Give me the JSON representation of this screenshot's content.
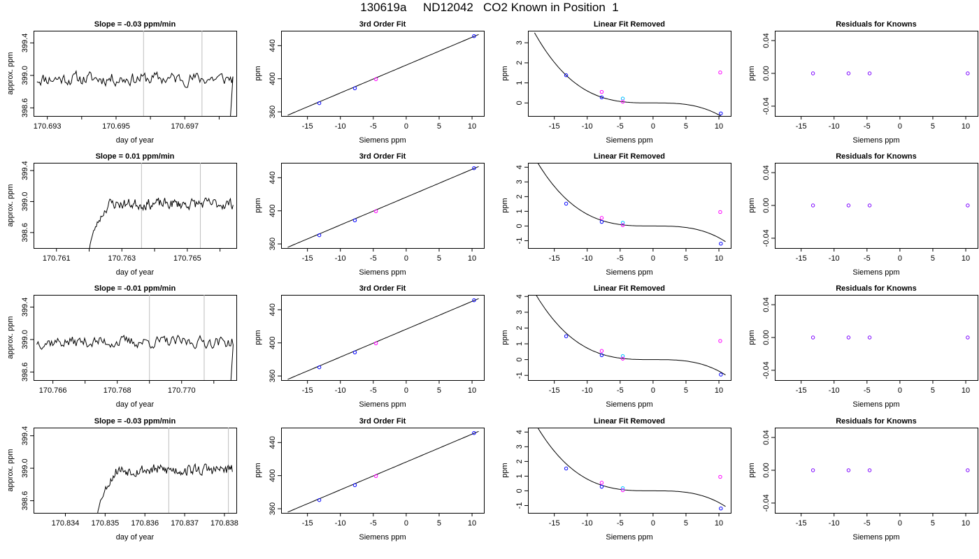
{
  "title": "130619a     ND12042   CO2 Known in Position  1",
  "colors": {
    "line": "#000000",
    "marker_points": "#0000ff",
    "marker_known": "#ff00ff",
    "marker_cyan": "#00bfff",
    "marker_residual": "#7b00ff",
    "vline": "#bebebe"
  },
  "chart_data": [
    {
      "type": "line",
      "row": 1,
      "col": 1,
      "title": "Slope =  -0.03  ppm/min",
      "xlabel": "day of year",
      "ylabel": "approx. ppm",
      "xlim": [
        170.6926,
        170.6985
      ],
      "ylim": [
        398.5,
        399.55
      ],
      "xticks": [
        170.693,
        170.694,
        170.695,
        170.696,
        170.697,
        170.698
      ],
      "xticklabels": [
        "170.693",
        "",
        "170.695",
        "",
        "170.697",
        ""
      ],
      "yticks": [
        398.6,
        399.0,
        399.4
      ],
      "yticklabels": [
        "398.6",
        "399.0",
        "399.4"
      ],
      "vlines": [
        170.6958,
        170.6975
      ],
      "trace": {
        "start": 170.6927,
        "end": 170.6984,
        "level": 398.96,
        "noise": 0.08,
        "ramp_end": null,
        "drop_at": 170.6983,
        "seed": 11
      }
    },
    {
      "type": "scatter",
      "row": 1,
      "col": 2,
      "title": "3rd Order Fit",
      "xlabel": "Siemens ppm",
      "ylabel": "ppm",
      "xlim": [
        -19,
        11.8
      ],
      "ylim": [
        355,
        458
      ],
      "xticks": [
        -15,
        -10,
        -5,
        0,
        5,
        10
      ],
      "xticklabels": [
        "-15",
        "-10",
        "-5",
        "0",
        "5",
        "10"
      ],
      "yticks": [
        360,
        400,
        440
      ],
      "yticklabels": [
        "360",
        "400",
        "440"
      ],
      "curve": {
        "fn": "fit3",
        "x0": -18,
        "x1": 11,
        "shift": 0
      },
      "points": [
        {
          "x": -13.2,
          "y": 370.5,
          "color": "blue"
        },
        {
          "x": -7.8,
          "y": 388.5,
          "color": "blue"
        },
        {
          "x": -4.6,
          "y": 399.5,
          "color": "magenta"
        },
        {
          "x": 10.3,
          "y": 451.5,
          "color": "blue"
        }
      ]
    },
    {
      "type": "scatter",
      "row": 1,
      "col": 3,
      "title": "Linear Fit Removed",
      "xlabel": "Siemens ppm",
      "ylabel": "ppm",
      "xlim": [
        -19,
        11.8
      ],
      "ylim": [
        -0.65,
        3.6
      ],
      "xticks": [
        -15,
        -10,
        -5,
        0,
        5,
        10
      ],
      "xticklabels": [
        "-15",
        "-10",
        "-5",
        "0",
        "5",
        "10"
      ],
      "yticks": [
        0,
        1,
        2,
        3
      ],
      "yticklabels": [
        "0",
        "1",
        "2",
        "3"
      ],
      "curve": {
        "fn": "cubic",
        "x0": -18,
        "x1": 11,
        "coef": 0.0006,
        "offset": 0.0
      },
      "points": [
        {
          "x": -13.2,
          "y": 1.38,
          "color": "blue"
        },
        {
          "x": -7.8,
          "y": 0.28,
          "color": "blue"
        },
        {
          "x": -7.8,
          "y": 0.55,
          "color": "magenta"
        },
        {
          "x": -4.6,
          "y": 0.22,
          "color": "cyan"
        },
        {
          "x": -4.6,
          "y": 0.06,
          "color": "magenta"
        },
        {
          "x": 10.2,
          "y": 1.52,
          "color": "magenta"
        },
        {
          "x": 10.3,
          "y": -0.52,
          "color": "blue"
        }
      ]
    },
    {
      "type": "scatter",
      "row": 1,
      "col": 4,
      "title": "Residuals for Knowns",
      "xlabel": "Siemens ppm",
      "ylabel": "ppm",
      "xlim": [
        -19,
        11.8
      ],
      "ylim": [
        -0.052,
        0.052
      ],
      "xticks": [
        -15,
        -10,
        -5,
        0,
        5,
        10
      ],
      "xticklabels": [
        "-15",
        "-10",
        "-5",
        "0",
        "5",
        "10"
      ],
      "yticks": [
        -0.04,
        0.0,
        0.04
      ],
      "yticklabels": [
        "-0.04",
        "0.00",
        "0.04"
      ],
      "points": [
        {
          "x": -13.2,
          "y": 0,
          "color": "purple"
        },
        {
          "x": -7.8,
          "y": 0,
          "color": "purple"
        },
        {
          "x": -4.6,
          "y": 0,
          "color": "purple"
        },
        {
          "x": 10.3,
          "y": 0,
          "color": "purple"
        }
      ]
    },
    {
      "type": "line",
      "row": 2,
      "col": 1,
      "title": "Slope =  0.01  ppm/min",
      "xlabel": "day of year",
      "ylabel": "approx. ppm",
      "xlim": [
        170.7603,
        170.7665
      ],
      "ylim": [
        398.4,
        399.5
      ],
      "xticks": [
        170.761,
        170.762,
        170.763,
        170.764,
        170.765,
        170.766
      ],
      "xticklabels": [
        "170.761",
        "",
        "170.763",
        "",
        "170.765",
        ""
      ],
      "yticks": [
        398.6,
        399.0,
        399.4
      ],
      "yticklabels": [
        "398.6",
        "399.0",
        "399.4"
      ],
      "vlines": [
        170.7636,
        170.7654
      ],
      "trace": {
        "start": 170.762,
        "end": 170.7664,
        "level": 398.97,
        "noise": 0.07,
        "ramp_end": 170.7626,
        "drop_at": null,
        "seed": 23
      }
    },
    {
      "type": "scatter",
      "row": 2,
      "col": 2,
      "title": "3rd Order Fit",
      "xlabel": "Siemens ppm",
      "ylabel": "ppm",
      "xlim": [
        -19,
        11.8
      ],
      "ylim": [
        355,
        458
      ],
      "xticks": [
        -15,
        -10,
        -5,
        0,
        5,
        10
      ],
      "xticklabels": [
        "-15",
        "-10",
        "-5",
        "0",
        "5",
        "10"
      ],
      "yticks": [
        360,
        400,
        440
      ],
      "yticklabels": [
        "360",
        "400",
        "440"
      ],
      "curve": {
        "fn": "fit3",
        "x0": -18,
        "x1": 11,
        "shift": 0
      },
      "points": [
        {
          "x": -13.2,
          "y": 370.5,
          "color": "blue"
        },
        {
          "x": -7.8,
          "y": 388.5,
          "color": "blue"
        },
        {
          "x": -4.6,
          "y": 399.5,
          "color": "magenta"
        },
        {
          "x": 10.3,
          "y": 451.5,
          "color": "blue"
        }
      ]
    },
    {
      "type": "scatter",
      "row": 2,
      "col": 3,
      "title": "Linear Fit Removed",
      "xlabel": "Siemens ppm",
      "ylabel": "ppm",
      "xlim": [
        -19,
        11.8
      ],
      "ylim": [
        -1.5,
        4.3
      ],
      "xticks": [
        -15,
        -10,
        -5,
        0,
        5,
        10
      ],
      "xticklabels": [
        "-15",
        "-10",
        "-5",
        "0",
        "5",
        "10"
      ],
      "yticks": [
        -1,
        0,
        1,
        2,
        3,
        4
      ],
      "yticklabels": [
        "-1",
        "0",
        "1",
        "2",
        "3",
        "4"
      ],
      "curve": {
        "fn": "cubic",
        "x0": -18,
        "x1": 11,
        "coef": 0.0008,
        "offset": 0.0
      },
      "points": [
        {
          "x": -13.2,
          "y": 1.52,
          "color": "blue"
        },
        {
          "x": -7.8,
          "y": 0.28,
          "color": "blue"
        },
        {
          "x": -7.8,
          "y": 0.55,
          "color": "magenta"
        },
        {
          "x": -4.6,
          "y": 0.22,
          "color": "cyan"
        },
        {
          "x": -4.6,
          "y": 0.06,
          "color": "magenta"
        },
        {
          "x": 10.2,
          "y": 0.95,
          "color": "magenta"
        },
        {
          "x": 10.3,
          "y": -1.2,
          "color": "blue"
        }
      ]
    },
    {
      "type": "scatter",
      "row": 2,
      "col": 4,
      "title": "Residuals for Knowns",
      "xlabel": "Siemens ppm",
      "ylabel": "ppm",
      "xlim": [
        -19,
        11.8
      ],
      "ylim": [
        -0.052,
        0.052
      ],
      "xticks": [
        -15,
        -10,
        -5,
        0,
        5,
        10
      ],
      "xticklabels": [
        "-15",
        "-10",
        "-5",
        "0",
        "5",
        "10"
      ],
      "yticks": [
        -0.04,
        0.0,
        0.04
      ],
      "yticklabels": [
        "-0.04",
        "0.00",
        "0.04"
      ],
      "points": [
        {
          "x": -13.2,
          "y": 0,
          "color": "purple"
        },
        {
          "x": -7.8,
          "y": 0,
          "color": "purple"
        },
        {
          "x": -4.6,
          "y": 0,
          "color": "purple"
        },
        {
          "x": 10.3,
          "y": 0,
          "color": "purple"
        }
      ]
    },
    {
      "type": "line",
      "row": 3,
      "col": 1,
      "title": "Slope =  -0.01  ppm/min",
      "xlabel": "day of year",
      "ylabel": "approx. ppm",
      "xlim": [
        170.7654,
        170.7717
      ],
      "ylim": [
        398.5,
        399.55
      ],
      "xticks": [
        170.766,
        170.767,
        170.768,
        170.769,
        170.77,
        170.771
      ],
      "xticklabels": [
        "170.766",
        "",
        "170.768",
        "",
        "170.770",
        ""
      ],
      "yticks": [
        398.6,
        399.0,
        399.4
      ],
      "yticklabels": [
        "398.6",
        "399.0",
        "399.4"
      ],
      "vlines": [
        170.769,
        170.7707
      ],
      "trace": {
        "start": 170.7655,
        "end": 170.7716,
        "level": 398.97,
        "noise": 0.07,
        "ramp_end": null,
        "drop_at": 170.7715,
        "seed": 37
      }
    },
    {
      "type": "scatter",
      "row": 3,
      "col": 2,
      "title": "3rd Order Fit",
      "xlabel": "Siemens ppm",
      "ylabel": "ppm",
      "xlim": [
        -19,
        11.8
      ],
      "ylim": [
        355,
        458
      ],
      "xticks": [
        -15,
        -10,
        -5,
        0,
        5,
        10
      ],
      "xticklabels": [
        "-15",
        "-10",
        "-5",
        "0",
        "5",
        "10"
      ],
      "yticks": [
        360,
        400,
        440
      ],
      "yticklabels": [
        "360",
        "400",
        "440"
      ],
      "curve": {
        "fn": "fit3",
        "x0": -18,
        "x1": 11,
        "shift": 0
      },
      "points": [
        {
          "x": -13.2,
          "y": 370.5,
          "color": "blue"
        },
        {
          "x": -7.8,
          "y": 388.5,
          "color": "blue"
        },
        {
          "x": -4.6,
          "y": 399.5,
          "color": "magenta"
        },
        {
          "x": 10.3,
          "y": 451.5,
          "color": "blue"
        }
      ]
    },
    {
      "type": "scatter",
      "row": 3,
      "col": 3,
      "title": "Linear Fit Removed",
      "xlabel": "Siemens ppm",
      "ylabel": "ppm",
      "xlim": [
        -19,
        11.8
      ],
      "ylim": [
        -1.3,
        4.1
      ],
      "xticks": [
        -15,
        -10,
        -5,
        0,
        5,
        10
      ],
      "xticklabels": [
        "-15",
        "-10",
        "-5",
        "0",
        "5",
        "10"
      ],
      "yticks": [
        -1,
        0,
        1,
        2,
        3,
        4
      ],
      "yticklabels": [
        "-1",
        "0",
        "1",
        "2",
        "3",
        "4"
      ],
      "curve": {
        "fn": "cubic",
        "x0": -18,
        "x1": 11,
        "coef": 0.00073,
        "offset": 0.0
      },
      "points": [
        {
          "x": -13.2,
          "y": 1.48,
          "color": "blue"
        },
        {
          "x": -7.8,
          "y": 0.28,
          "color": "blue"
        },
        {
          "x": -7.8,
          "y": 0.55,
          "color": "magenta"
        },
        {
          "x": -4.6,
          "y": 0.22,
          "color": "cyan"
        },
        {
          "x": -4.6,
          "y": 0.06,
          "color": "magenta"
        },
        {
          "x": 10.2,
          "y": 1.18,
          "color": "magenta"
        },
        {
          "x": 10.3,
          "y": -0.95,
          "color": "blue"
        }
      ]
    },
    {
      "type": "scatter",
      "row": 3,
      "col": 4,
      "title": "Residuals for Knowns",
      "xlabel": "Siemens ppm",
      "ylabel": "ppm",
      "xlim": [
        -19,
        11.8
      ],
      "ylim": [
        -0.052,
        0.052
      ],
      "xticks": [
        -15,
        -10,
        -5,
        0,
        5,
        10
      ],
      "xticklabels": [
        "-15",
        "-10",
        "-5",
        "0",
        "5",
        "10"
      ],
      "yticks": [
        -0.04,
        0.0,
        0.04
      ],
      "yticklabels": [
        "-0.04",
        "0.00",
        "0.04"
      ],
      "points": [
        {
          "x": -13.2,
          "y": 0,
          "color": "purple"
        },
        {
          "x": -7.8,
          "y": 0,
          "color": "purple"
        },
        {
          "x": -4.6,
          "y": 0,
          "color": "purple"
        },
        {
          "x": 10.3,
          "y": 0,
          "color": "purple"
        }
      ]
    },
    {
      "type": "line",
      "row": 4,
      "col": 1,
      "title": "Slope =  -0.03  ppm/min",
      "xlabel": "day of year",
      "ylabel": "approx. ppm",
      "xlim": [
        170.8332,
        170.8383
      ],
      "ylim": [
        398.45,
        399.5
      ],
      "xticks": [
        170.834,
        170.835,
        170.836,
        170.837,
        170.838
      ],
      "xticklabels": [
        "170.834",
        "170.835",
        "170.836",
        "170.837",
        "170.838"
      ],
      "yticks": [
        398.6,
        399.0,
        399.4
      ],
      "yticklabels": [
        "398.6",
        "399.0",
        "399.4"
      ],
      "vlines": [
        170.8366,
        170.8381
      ],
      "trace": {
        "start": 170.8348,
        "end": 170.8382,
        "level": 398.98,
        "noise": 0.07,
        "ramp_end": 170.8353,
        "drop_at": null,
        "seed": 53
      }
    },
    {
      "type": "scatter",
      "row": 4,
      "col": 2,
      "title": "3rd Order Fit",
      "xlabel": "Siemens ppm",
      "ylabel": "ppm",
      "xlim": [
        -19,
        11.8
      ],
      "ylim": [
        355,
        458
      ],
      "xticks": [
        -15,
        -10,
        -5,
        0,
        5,
        10
      ],
      "xticklabels": [
        "-15",
        "-10",
        "-5",
        "0",
        "5",
        "10"
      ],
      "yticks": [
        360,
        400,
        440
      ],
      "yticklabels": [
        "360",
        "400",
        "440"
      ],
      "curve": {
        "fn": "fit3",
        "x0": -18,
        "x1": 11,
        "shift": 0
      },
      "points": [
        {
          "x": -13.2,
          "y": 370.5,
          "color": "blue"
        },
        {
          "x": -7.8,
          "y": 388.5,
          "color": "blue"
        },
        {
          "x": -4.6,
          "y": 399.5,
          "color": "magenta"
        },
        {
          "x": 10.3,
          "y": 451.5,
          "color": "blue"
        }
      ]
    },
    {
      "type": "scatter",
      "row": 4,
      "col": 3,
      "title": "Linear Fit Removed",
      "xlabel": "Siemens ppm",
      "ylabel": "ppm",
      "xlim": [
        -19,
        11.8
      ],
      "ylim": [
        -1.5,
        4.3
      ],
      "xticks": [
        -15,
        -10,
        -5,
        0,
        5,
        10
      ],
      "xticklabels": [
        "-15",
        "-10",
        "-5",
        "0",
        "5",
        "10"
      ],
      "yticks": [
        -1,
        0,
        1,
        2,
        3,
        4
      ],
      "yticklabels": [
        "-1",
        "0",
        "1",
        "2",
        "3",
        "4"
      ],
      "curve": {
        "fn": "cubic",
        "x0": -18,
        "x1": 11,
        "coef": 0.0008,
        "offset": 0.0
      },
      "points": [
        {
          "x": -13.2,
          "y": 1.52,
          "color": "blue"
        },
        {
          "x": -7.8,
          "y": 0.28,
          "color": "blue"
        },
        {
          "x": -7.8,
          "y": 0.55,
          "color": "magenta"
        },
        {
          "x": -4.6,
          "y": 0.18,
          "color": "cyan"
        },
        {
          "x": -4.6,
          "y": 0.04,
          "color": "magenta"
        },
        {
          "x": 10.2,
          "y": 0.95,
          "color": "magenta"
        },
        {
          "x": 10.3,
          "y": -1.2,
          "color": "blue"
        }
      ]
    },
    {
      "type": "scatter",
      "row": 4,
      "col": 4,
      "title": "Residuals for Knowns",
      "xlabel": "Siemens ppm",
      "ylabel": "ppm",
      "xlim": [
        -19,
        11.8
      ],
      "ylim": [
        -0.052,
        0.052
      ],
      "xticks": [
        -15,
        -10,
        -5,
        0,
        5,
        10
      ],
      "xticklabels": [
        "-15",
        "-10",
        "-5",
        "0",
        "5",
        "10"
      ],
      "yticks": [
        -0.04,
        0.0,
        0.04
      ],
      "yticklabels": [
        "-0.04",
        "0.00",
        "0.04"
      ],
      "points": [
        {
          "x": -13.2,
          "y": 0,
          "color": "purple"
        },
        {
          "x": -7.8,
          "y": 0,
          "color": "purple"
        },
        {
          "x": -4.6,
          "y": 0,
          "color": "purple"
        },
        {
          "x": 10.3,
          "y": 0,
          "color": "purple"
        }
      ]
    }
  ]
}
